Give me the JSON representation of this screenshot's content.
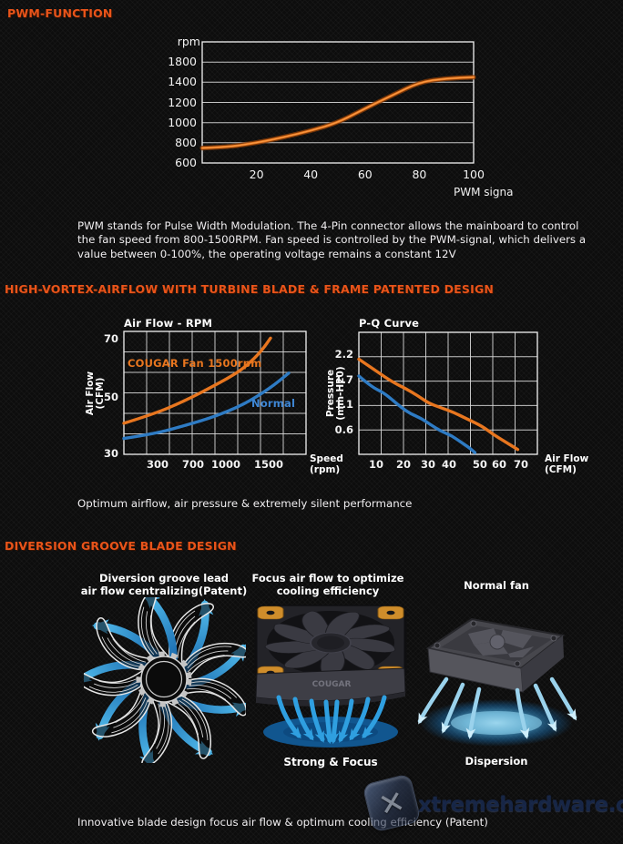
{
  "page": {
    "headings": {
      "pwm": "PWM-FUNCTION",
      "vortex": "HIGH-VORTEX-AIRFLOW WITH TURBINE BLADE & FRAME PATENTED DESIGN",
      "groove": "DIVERSION GROOVE BLADE DESIGN"
    },
    "pwm_paragraph": "PWM stands for Pulse Width Modulation. The 4-Pin connector allows the mainboard to control the fan speed from 800-1500RPM. Fan speed is controlled by the PWM-signal, which delivers a value between 0-100%, the operating voltage remains a constant 12V",
    "optimum_line": "Optimum airflow, air pressure & extremely silent performance",
    "innovative_line": "Innovative blade design focus air flow & optimum cooling efficiency (Patent)",
    "fan_labels": {
      "fan1_line1": "Diversion groove lead",
      "fan1_line2": "air flow centralizing(Patent)",
      "fan2_line1": "Focus air flow to optimize",
      "fan2_line2": "cooling efficiency",
      "fan3": "Normal fan",
      "fan2_caption": "Strong & Focus",
      "fan3_caption": "Dispersion"
    },
    "watermark": {
      "text": "xtremehardware.com",
      "x_glyph": "✕"
    },
    "colors": {
      "accent_orange": "#e9541a",
      "curve_orange": "#e8761f",
      "curve_blue": "#2e7bc4",
      "arrow_blue": "#2f9fe0"
    }
  },
  "chart_data": [
    {
      "id": "pwm",
      "type": "line",
      "title": "",
      "y_unit_label": "rpm",
      "xlabel": "PWM signa",
      "y_ticks": [
        1800,
        1400,
        1200,
        1000,
        800,
        600
      ],
      "x_ticks": [
        {
          "label": "20",
          "fx": 0.2
        },
        {
          "label": "40",
          "fx": 0.4
        },
        {
          "label": "60",
          "fx": 0.6
        },
        {
          "label": "80",
          "fx": 0.8
        },
        {
          "label": "100",
          "fx": 1.0
        }
      ],
      "x_note": "fx * 100 = PWM signal percent",
      "y_note": "y axis non-linear: ticks 600,800,1000,1200,1400,1800 evenly spaced",
      "series": [
        {
          "name": "fan-speed-rpm",
          "color": "#e8761f",
          "points": [
            [
              0,
              748
            ],
            [
              0.1,
              758
            ],
            [
              0.2,
              800
            ],
            [
              0.3,
              855
            ],
            [
              0.4,
              920
            ],
            [
              0.5,
              1000
            ],
            [
              0.6,
              1140
            ],
            [
              0.7,
              1270
            ],
            [
              0.8,
              1400
            ],
            [
              0.9,
              1478
            ],
            [
              1,
              1500
            ]
          ]
        }
      ]
    },
    {
      "id": "airflow_rpm",
      "type": "line",
      "title": "Air Flow - RPM",
      "ylabel_lines": [
        "Air Flow",
        "(CFM)"
      ],
      "xlabel_lines": [
        "Speed",
        "(rpm)"
      ],
      "y_ticks": [
        70,
        50,
        30
      ],
      "x_ticks": [
        {
          "label": "300",
          "fx": 0.185
        },
        {
          "label": "700",
          "fx": 0.38
        },
        {
          "label": "1000",
          "fx": 0.56
        },
        {
          "label": "1500",
          "fx": 0.795
        }
      ],
      "series": [
        {
          "name": "cougar-fan-1500rpm",
          "label_in_chart": "COUGAR Fan 1500rpm",
          "color": "#e8761f",
          "points": [
            [
              0,
              41
            ],
            [
              0.17,
              44.4
            ],
            [
              0.33,
              48.8
            ],
            [
              0.5,
              54.3
            ],
            [
              0.62,
              58.5
            ],
            [
              0.7,
              62.5
            ],
            [
              0.76,
              66.5
            ],
            [
              0.805,
              70.5
            ]
          ]
        },
        {
          "name": "normal-fan",
          "label_in_chart": "Normal",
          "color": "#2e7bc4",
          "points": [
            [
              0,
              35.6
            ],
            [
              0.17,
              37.3
            ],
            [
              0.33,
              40.1
            ],
            [
              0.5,
              43.4
            ],
            [
              0.66,
              47.7
            ],
            [
              0.8,
              53.2
            ],
            [
              0.905,
              58.5
            ]
          ]
        }
      ]
    },
    {
      "id": "pq_curve",
      "type": "line",
      "title": "P-Q Curve",
      "ylabel_lines": [
        "Pressure",
        "(mm-H20)"
      ],
      "xlabel_lines": [
        "Air Flow",
        "(CFM)"
      ],
      "y_ticks": [
        2.2,
        1.7,
        1.1,
        0.6
      ],
      "x_ticks": [
        {
          "label": "10",
          "fx": 0.097
        },
        {
          "label": "20",
          "fx": 0.25
        },
        {
          "label": "30",
          "fx": 0.388
        },
        {
          "label": "40",
          "fx": 0.505
        },
        {
          "label": "50",
          "fx": 0.678
        },
        {
          "label": "60",
          "fx": 0.786
        },
        {
          "label": "70",
          "fx": 0.908
        }
      ],
      "series": [
        {
          "name": "cougar-fan",
          "color": "#e8761f",
          "points": [
            [
              0,
              2.12
            ],
            [
              0.1,
              1.88
            ],
            [
              0.19,
              1.66
            ],
            [
              0.26,
              1.51
            ],
            [
              0.33,
              1.33
            ],
            [
              0.39,
              1.15
            ],
            [
              0.46,
              1.05
            ],
            [
              0.53,
              0.96
            ],
            [
              0.6,
              0.84
            ],
            [
              0.69,
              0.69
            ],
            [
              0.75,
              0.53
            ],
            [
              0.82,
              0.38
            ],
            [
              0.89,
              0.23
            ]
          ]
        },
        {
          "name": "normal-fan",
          "color": "#2e7bc4",
          "points": [
            [
              0,
              1.79
            ],
            [
              0.07,
              1.55
            ],
            [
              0.14,
              1.4
            ],
            [
              0.19,
              1.22
            ],
            [
              0.24,
              1.05
            ],
            [
              0.29,
              0.93
            ],
            [
              0.35,
              0.84
            ],
            [
              0.4,
              0.72
            ],
            [
              0.46,
              0.59
            ],
            [
              0.52,
              0.5
            ],
            [
              0.57,
              0.38
            ],
            [
              0.62,
              0.26
            ],
            [
              0.65,
              0.17
            ]
          ]
        }
      ]
    }
  ]
}
